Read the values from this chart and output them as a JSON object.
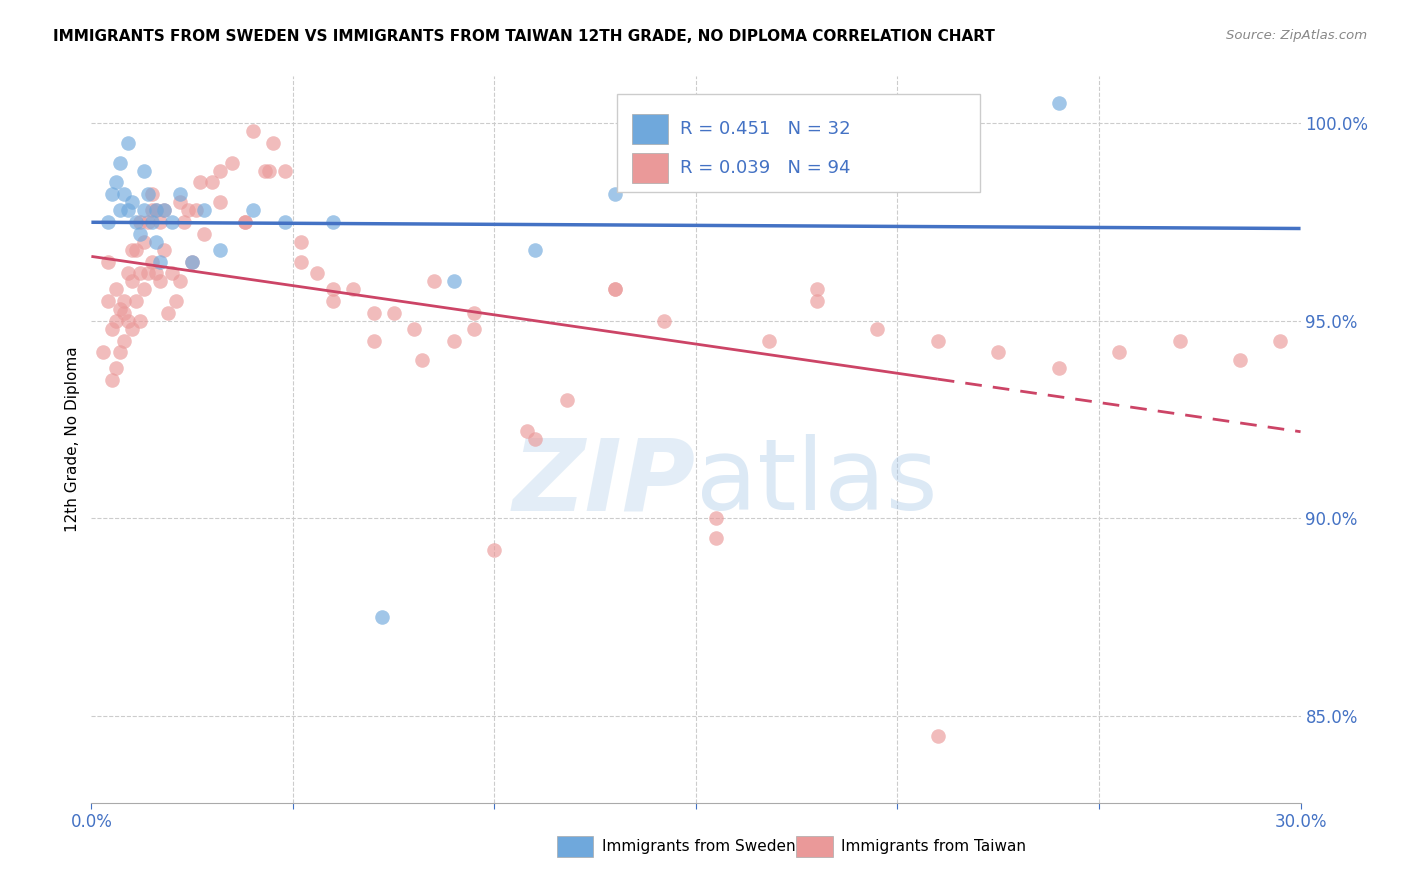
{
  "title": "IMMIGRANTS FROM SWEDEN VS IMMIGRANTS FROM TAIWAN 12TH GRADE, NO DIPLOMA CORRELATION CHART",
  "source": "Source: ZipAtlas.com",
  "ylabel": "12th Grade, No Diploma",
  "xlim": [
    0.0,
    0.3
  ],
  "ylim": [
    0.828,
    1.012
  ],
  "yticks": [
    0.85,
    0.9,
    0.95,
    1.0
  ],
  "ytick_labels": [
    "85.0%",
    "90.0%",
    "95.0%",
    "100.0%"
  ],
  "sweden_color": "#6fa8dc",
  "taiwan_color": "#ea9999",
  "sweden_line_color": "#4472c4",
  "taiwan_line_color": "#cc4466",
  "sweden_R": "0.451",
  "sweden_N": "32",
  "taiwan_R": "0.039",
  "taiwan_N": "94",
  "legend_label_sweden": "Immigrants from Sweden",
  "legend_label_taiwan": "Immigrants from Taiwan",
  "sweden_x": [
    0.004,
    0.005,
    0.006,
    0.007,
    0.007,
    0.008,
    0.009,
    0.009,
    0.01,
    0.011,
    0.012,
    0.013,
    0.013,
    0.014,
    0.015,
    0.016,
    0.016,
    0.017,
    0.018,
    0.02,
    0.022,
    0.025,
    0.028,
    0.032,
    0.04,
    0.048,
    0.06,
    0.072,
    0.09,
    0.11,
    0.13,
    0.24
  ],
  "sweden_y": [
    0.975,
    0.982,
    0.985,
    0.978,
    0.99,
    0.982,
    0.995,
    0.978,
    0.98,
    0.975,
    0.972,
    0.988,
    0.978,
    0.982,
    0.975,
    0.978,
    0.97,
    0.965,
    0.978,
    0.975,
    0.982,
    0.965,
    0.978,
    0.968,
    0.978,
    0.975,
    0.975,
    0.875,
    0.96,
    0.968,
    0.982,
    1.005
  ],
  "taiwan_x": [
    0.003,
    0.004,
    0.005,
    0.005,
    0.006,
    0.006,
    0.007,
    0.007,
    0.008,
    0.008,
    0.009,
    0.009,
    0.01,
    0.01,
    0.011,
    0.011,
    0.012,
    0.012,
    0.013,
    0.013,
    0.014,
    0.014,
    0.015,
    0.015,
    0.016,
    0.016,
    0.017,
    0.017,
    0.018,
    0.019,
    0.02,
    0.021,
    0.022,
    0.023,
    0.024,
    0.025,
    0.026,
    0.028,
    0.03,
    0.032,
    0.035,
    0.038,
    0.04,
    0.043,
    0.045,
    0.048,
    0.052,
    0.056,
    0.06,
    0.065,
    0.07,
    0.075,
    0.08,
    0.085,
    0.09,
    0.095,
    0.1,
    0.108,
    0.118,
    0.13,
    0.142,
    0.155,
    0.168,
    0.18,
    0.195,
    0.21,
    0.225,
    0.24,
    0.255,
    0.27,
    0.285,
    0.295,
    0.004,
    0.006,
    0.008,
    0.01,
    0.012,
    0.015,
    0.018,
    0.022,
    0.027,
    0.032,
    0.038,
    0.044,
    0.052,
    0.06,
    0.07,
    0.082,
    0.095,
    0.11,
    0.13,
    0.155,
    0.18,
    0.21
  ],
  "taiwan_y": [
    0.942,
    0.955,
    0.948,
    0.935,
    0.95,
    0.938,
    0.953,
    0.942,
    0.955,
    0.945,
    0.962,
    0.95,
    0.96,
    0.948,
    0.968,
    0.955,
    0.962,
    0.95,
    0.97,
    0.958,
    0.975,
    0.962,
    0.978,
    0.965,
    0.978,
    0.962,
    0.975,
    0.96,
    0.968,
    0.952,
    0.962,
    0.955,
    0.96,
    0.975,
    0.978,
    0.965,
    0.978,
    0.972,
    0.985,
    0.988,
    0.99,
    0.975,
    0.998,
    0.988,
    0.995,
    0.988,
    0.97,
    0.962,
    0.955,
    0.958,
    0.945,
    0.952,
    0.948,
    0.96,
    0.945,
    0.952,
    0.892,
    0.922,
    0.93,
    0.958,
    0.95,
    0.895,
    0.945,
    0.955,
    0.948,
    0.945,
    0.942,
    0.938,
    0.942,
    0.945,
    0.94,
    0.945,
    0.965,
    0.958,
    0.952,
    0.968,
    0.975,
    0.982,
    0.978,
    0.98,
    0.985,
    0.98,
    0.975,
    0.988,
    0.965,
    0.958,
    0.952,
    0.94,
    0.948,
    0.92,
    0.958,
    0.9,
    0.958,
    0.845
  ]
}
